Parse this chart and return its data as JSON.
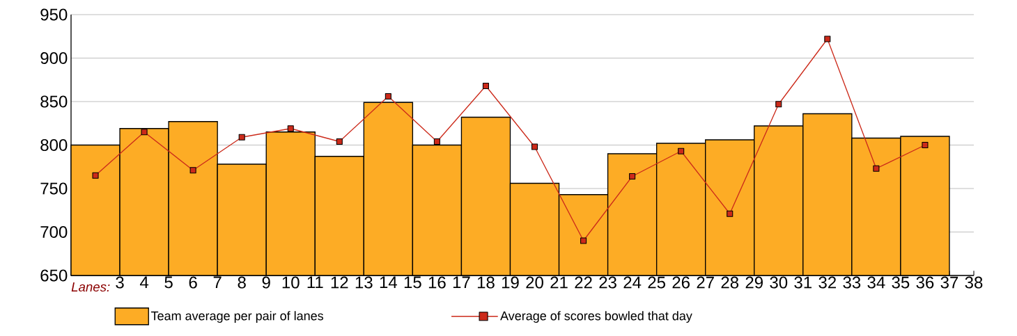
{
  "chart_data": {
    "type": "bar",
    "xlabel": "Lanes:",
    "x": [
      2,
      4,
      6,
      8,
      10,
      12,
      14,
      16,
      18,
      20,
      22,
      24,
      26,
      28,
      30,
      32,
      34,
      36
    ],
    "series": [
      {
        "name": "Team average per pair of lanes",
        "color": "#fdac25",
        "values": [
          800,
          819,
          827,
          778,
          815,
          787,
          849,
          800,
          832,
          756,
          743,
          790,
          802,
          806,
          822,
          836,
          808,
          810
        ]
      },
      {
        "name": "Average of scores bowled that day",
        "type": "line",
        "color": "#cc2a1a",
        "values": [
          765,
          815,
          771,
          809,
          819,
          804,
          856,
          804,
          868,
          798,
          690,
          764,
          793,
          721,
          847,
          922,
          773,
          800
        ]
      }
    ],
    "marker": "square",
    "xlim": [
      1,
      38
    ],
    "xticks": [
      3,
      4,
      5,
      6,
      7,
      8,
      9,
      10,
      11,
      12,
      13,
      14,
      15,
      16,
      17,
      18,
      19,
      20,
      21,
      22,
      23,
      24,
      25,
      26,
      27,
      28,
      29,
      30,
      31,
      32,
      33,
      34,
      35,
      36,
      37,
      38
    ],
    "ylim": [
      650,
      950
    ],
    "yticks": [
      650,
      700,
      750,
      800,
      850,
      900,
      950
    ],
    "grid": "y",
    "legend": "bottom"
  }
}
